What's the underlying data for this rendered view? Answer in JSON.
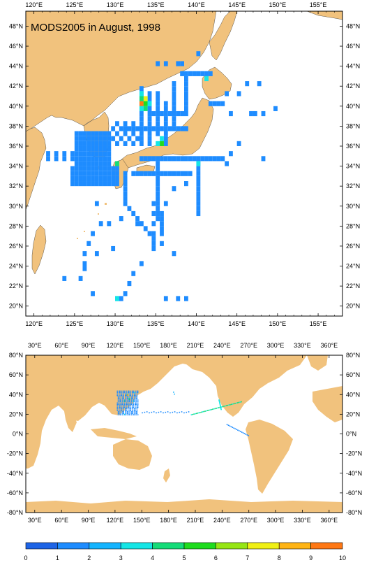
{
  "title": "MODS2005 in August, 1998",
  "colors": {
    "land": "#f1c27d",
    "ocean": "#ffffff",
    "frame": "#000000"
  },
  "regional_map": {
    "x_ticks": [
      "120°E",
      "125°E",
      "130°E",
      "135°E",
      "140°E",
      "145°E",
      "150°E",
      "155°E"
    ],
    "y_ticks": [
      "48°N",
      "46°N",
      "44°N",
      "42°N",
      "40°N",
      "38°N",
      "36°N",
      "34°N",
      "32°N",
      "30°N",
      "28°N",
      "26°N",
      "24°N",
      "22°N",
      "20°N"
    ]
  },
  "global_map": {
    "x_ticks": [
      "30°E",
      "60°E",
      "90°E",
      "120°E",
      "150°E",
      "180°E",
      "210°E",
      "240°E",
      "270°E",
      "300°E",
      "330°E",
      "360°E"
    ],
    "y_ticks": [
      "80°N",
      "60°N",
      "40°N",
      "20°N",
      "0°N",
      "-20°N",
      "-40°N",
      "-60°N",
      "-80°N"
    ]
  },
  "colorbar": {
    "labels": [
      "0",
      "1",
      "2",
      "3",
      "4",
      "5",
      "6",
      "7",
      "8",
      "9",
      "10"
    ],
    "colors": [
      "#1e64e6",
      "#1e8cff",
      "#14b4ff",
      "#14e6e6",
      "#14dc78",
      "#1edc1e",
      "#96e614",
      "#f0f014",
      "#ffb414",
      "#ff7814"
    ]
  },
  "chart_data": {
    "type": "heatmap",
    "title": "MODS2005 in August, 1998",
    "xlabel": "",
    "ylabel": "",
    "xlim": [
      119,
      158
    ],
    "ylim": [
      19,
      49.5
    ],
    "scale": [
      0,
      10
    ],
    "legend": "bottom colorbar",
    "cells": [
      {
        "lon": 133.0,
        "lat": 40.0,
        "v": 9
      },
      {
        "lon": 133.5,
        "lat": 40.5,
        "v": 7
      },
      {
        "lon": 133.0,
        "lat": 40.5,
        "v": 4
      },
      {
        "lon": 133.5,
        "lat": 40.0,
        "v": 5
      },
      {
        "lon": 133.0,
        "lat": 41.0,
        "v": 3
      },
      {
        "lon": 133.5,
        "lat": 39.5,
        "v": 4
      },
      {
        "lon": 134.0,
        "lat": 40.0,
        "v": 3
      },
      {
        "lon": 133.0,
        "lat": 39.5,
        "v": 3
      },
      {
        "lon": 135.5,
        "lat": 36.0,
        "v": 5
      },
      {
        "lon": 135.0,
        "lat": 36.0,
        "v": 3
      },
      {
        "lon": 135.5,
        "lat": 36.5,
        "v": 3
      },
      {
        "lon": 130.0,
        "lat": 34.0,
        "v": 4
      },
      {
        "lon": 140.0,
        "lat": 34.0,
        "v": 3
      },
      {
        "lon": 141.0,
        "lat": 42.5,
        "v": 3
      },
      {
        "lon": 130.0,
        "lat": 20.5,
        "v": 3
      }
    ]
  }
}
